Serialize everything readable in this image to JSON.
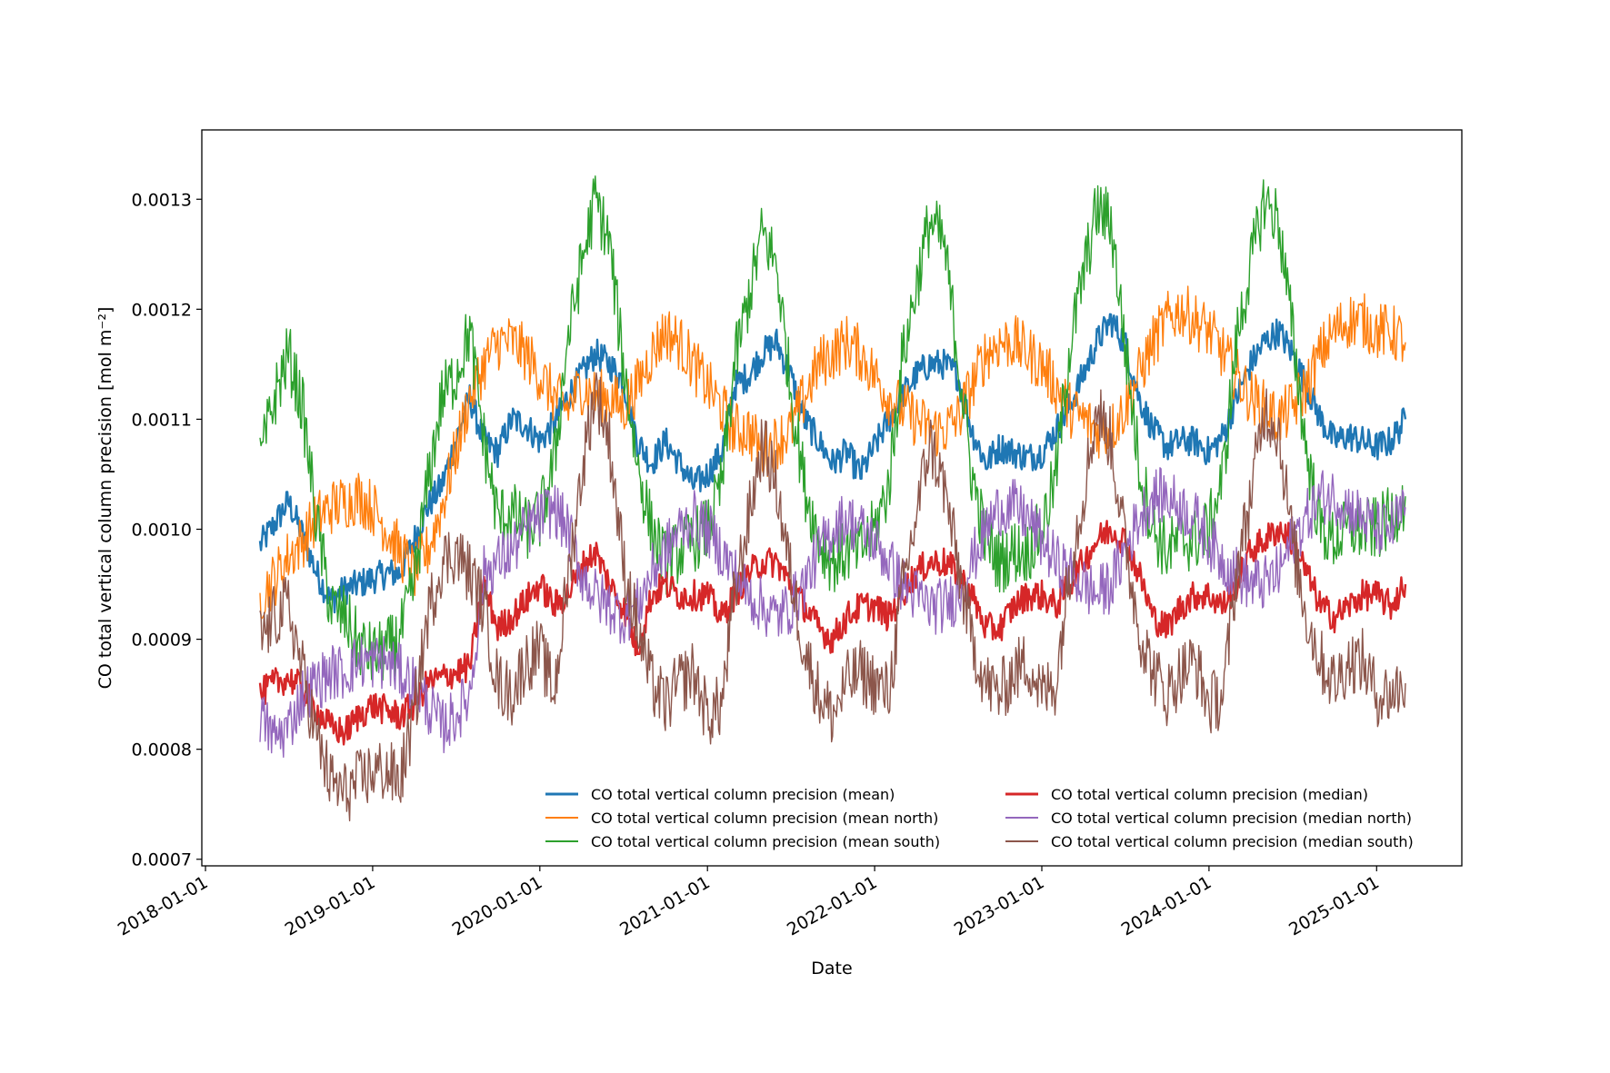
{
  "chart_data": {
    "type": "line",
    "title": "",
    "xlabel": "Date",
    "ylabel": "CO total vertical column precision [mol m⁻²]",
    "x_axis": "date",
    "xlim": [
      "2017-12-24",
      "2025-07-06"
    ],
    "ylim": [
      0.000694,
      0.001363
    ],
    "xticks": [
      "2018-01-01",
      "2019-01-01",
      "2020-01-01",
      "2021-01-01",
      "2022-01-01",
      "2023-01-01",
      "2024-01-01",
      "2025-01-01"
    ],
    "yticks": [
      0.0007,
      0.0008,
      0.0009,
      0.001,
      0.0011,
      0.0012,
      0.0013
    ],
    "ytick_labels": [
      "0.0007",
      "0.0008",
      "0.0009",
      "0.0010",
      "0.0011",
      "0.0012",
      "0.0013"
    ],
    "grid": false,
    "legend_position": "lower-right",
    "legend_columns": 2,
    "x": [
      "2018-04-30",
      "2018-06-01",
      "2018-07-01",
      "2018-08-01",
      "2018-09-01",
      "2018-10-01",
      "2018-11-01",
      "2018-12-01",
      "2019-01-01",
      "2019-02-01",
      "2019-03-01",
      "2019-04-01",
      "2019-05-01",
      "2019-06-01",
      "2019-07-01",
      "2019-08-01",
      "2019-09-01",
      "2019-10-01",
      "2019-11-01",
      "2019-12-01",
      "2020-01-01",
      "2020-02-01",
      "2020-03-01",
      "2020-04-01",
      "2020-05-01",
      "2020-06-01",
      "2020-07-01",
      "2020-08-01",
      "2020-09-01",
      "2020-10-01",
      "2020-11-01",
      "2020-12-01",
      "2021-01-01",
      "2021-02-01",
      "2021-03-01",
      "2021-04-01",
      "2021-05-01",
      "2021-06-01",
      "2021-07-01",
      "2021-08-01",
      "2021-09-01",
      "2021-10-01",
      "2021-11-01",
      "2021-12-01",
      "2022-01-01",
      "2022-02-01",
      "2022-03-01",
      "2022-04-01",
      "2022-05-01",
      "2022-06-01",
      "2022-07-01",
      "2022-08-01",
      "2022-09-01",
      "2022-10-01",
      "2022-11-01",
      "2022-12-01",
      "2023-01-01",
      "2023-02-01",
      "2023-03-01",
      "2023-04-01",
      "2023-05-01",
      "2023-06-01",
      "2023-07-01",
      "2023-08-01",
      "2023-09-01",
      "2023-10-01",
      "2023-11-01",
      "2023-12-01",
      "2024-01-01",
      "2024-02-01",
      "2024-03-01",
      "2024-04-01",
      "2024-05-01",
      "2024-06-01",
      "2024-07-01",
      "2024-08-01",
      "2024-09-01",
      "2024-10-01",
      "2024-11-01",
      "2024-12-01",
      "2025-01-01",
      "2025-02-01",
      "2025-03-05"
    ],
    "series": [
      {
        "name": "CO total vertical column precision (mean)",
        "color": "#1f77b4",
        "width": 2.4,
        "values": [
          0.000985,
          0.001005,
          0.001025,
          0.000995,
          0.00096,
          0.000935,
          0.000945,
          0.00095,
          0.000955,
          0.00096,
          0.00096,
          0.00099,
          0.00102,
          0.00104,
          0.00108,
          0.00112,
          0.00108,
          0.00107,
          0.0011,
          0.001095,
          0.00108,
          0.001095,
          0.00112,
          0.00114,
          0.00116,
          0.00115,
          0.001135,
          0.00108,
          0.00106,
          0.00108,
          0.00106,
          0.00104,
          0.00105,
          0.00107,
          0.00113,
          0.00114,
          0.00116,
          0.00117,
          0.00114,
          0.0011,
          0.00108,
          0.00106,
          0.00107,
          0.00105,
          0.001075,
          0.0011,
          0.00112,
          0.00114,
          0.00115,
          0.00115,
          0.00114,
          0.00109,
          0.00106,
          0.001075,
          0.00107,
          0.001065,
          0.00107,
          0.00109,
          0.00111,
          0.00114,
          0.00117,
          0.00119,
          0.00117,
          0.00112,
          0.00109,
          0.001075,
          0.00108,
          0.00108,
          0.00107,
          0.001085,
          0.00112,
          0.00115,
          0.00117,
          0.00118,
          0.00116,
          0.00113,
          0.0011,
          0.00108,
          0.001085,
          0.00108,
          0.001075,
          0.00108,
          0.0011
        ]
      },
      {
        "name": "CO total vertical column precision (mean north)",
        "color": "#ff7f0e",
        "width": 1.4,
        "values": [
          0.00094,
          0.000955,
          0.000975,
          0.00099,
          0.00101,
          0.00102,
          0.001025,
          0.00103,
          0.00102,
          0.001,
          0.00098,
          0.00096,
          0.00098,
          0.00102,
          0.00107,
          0.00112,
          0.00115,
          0.00117,
          0.00117,
          0.00116,
          0.00114,
          0.00112,
          0.00111,
          0.00113,
          0.00112,
          0.00112,
          0.00111,
          0.00113,
          0.00116,
          0.00118,
          0.00117,
          0.00115,
          0.00113,
          0.00111,
          0.00109,
          0.00109,
          0.00107,
          0.00108,
          0.00109,
          0.00112,
          0.00115,
          0.00116,
          0.00117,
          0.00116,
          0.00114,
          0.00112,
          0.00111,
          0.0011,
          0.00109,
          0.00109,
          0.0011,
          0.00113,
          0.00116,
          0.00117,
          0.00117,
          0.00116,
          0.00115,
          0.00113,
          0.00111,
          0.0011,
          0.00109,
          0.00109,
          0.00111,
          0.00114,
          0.00117,
          0.00119,
          0.0012,
          0.00119,
          0.00118,
          0.00116,
          0.00114,
          0.00112,
          0.00111,
          0.0011,
          0.00111,
          0.00113,
          0.00116,
          0.00118,
          0.00119,
          0.00119,
          0.00118,
          0.00118,
          0.00117
        ]
      },
      {
        "name": "CO total vertical column precision (mean south)",
        "color": "#2ca02c",
        "width": 1.4,
        "values": [
          0.00106,
          0.00112,
          0.00116,
          0.00111,
          0.001005,
          0.00093,
          0.00092,
          0.000895,
          0.000885,
          0.00089,
          0.0009,
          0.00095,
          0.00104,
          0.00112,
          0.00114,
          0.00118,
          0.00108,
          0.00101,
          0.001015,
          0.001,
          0.00101,
          0.00106,
          0.00117,
          0.00124,
          0.0013,
          0.00126,
          0.00115,
          0.00106,
          0.001,
          0.00097,
          0.00098,
          0.00099,
          0.001,
          0.00104,
          0.00115,
          0.00121,
          0.00127,
          0.00124,
          0.00113,
          0.00104,
          0.00099,
          0.00097,
          0.00098,
          0.00098,
          0.001,
          0.00104,
          0.00115,
          0.00122,
          0.00128,
          0.00126,
          0.00116,
          0.00105,
          0.00099,
          0.00097,
          0.00098,
          0.00098,
          0.001,
          0.00105,
          0.00116,
          0.00123,
          0.00129,
          0.00128,
          0.00117,
          0.00106,
          0.001,
          0.00098,
          0.00099,
          0.00099,
          0.001,
          0.00105,
          0.00117,
          0.00124,
          0.0013,
          0.00128,
          0.00118,
          0.00107,
          0.001,
          0.00099,
          0.001,
          0.001,
          0.001,
          0.00101,
          0.00103
        ]
      },
      {
        "name": "CO total vertical column precision (median)",
        "color": "#d62728",
        "width": 2.4,
        "values": [
          0.00085,
          0.00086,
          0.000865,
          0.000855,
          0.000835,
          0.00082,
          0.000815,
          0.00083,
          0.00084,
          0.000835,
          0.00083,
          0.00084,
          0.00086,
          0.000865,
          0.00087,
          0.000875,
          0.00095,
          0.00091,
          0.00092,
          0.000935,
          0.00095,
          0.00093,
          0.00094,
          0.000965,
          0.00098,
          0.00095,
          0.00093,
          0.00089,
          0.00094,
          0.00095,
          0.00094,
          0.00094,
          0.00094,
          0.00092,
          0.00094,
          0.00096,
          0.00097,
          0.00097,
          0.00095,
          0.00093,
          0.00091,
          0.0009,
          0.00092,
          0.00093,
          0.00093,
          0.00092,
          0.00094,
          0.00096,
          0.00097,
          0.00097,
          0.00096,
          0.00094,
          0.00091,
          0.00091,
          0.00093,
          0.00094,
          0.00094,
          0.00093,
          0.00095,
          0.00097,
          0.00099,
          0.001,
          0.00099,
          0.00096,
          0.00092,
          0.00091,
          0.00093,
          0.00094,
          0.00094,
          0.00093,
          0.00095,
          0.00098,
          0.00099,
          0.001,
          0.00099,
          0.00096,
          0.00093,
          0.00092,
          0.00093,
          0.00094,
          0.00094,
          0.00093,
          0.00095
        ]
      },
      {
        "name": "CO total vertical column precision (median north)",
        "color": "#9467bd",
        "width": 1.4,
        "values": [
          0.00083,
          0.00081,
          0.00082,
          0.00085,
          0.00086,
          0.00087,
          0.00087,
          0.00088,
          0.00088,
          0.00088,
          0.00087,
          0.00086,
          0.00084,
          0.00082,
          0.00083,
          0.00085,
          0.00096,
          0.00097,
          0.00098,
          0.001,
          0.00101,
          0.00102,
          0.001,
          0.00096,
          0.00094,
          0.00093,
          0.00092,
          0.00093,
          0.00096,
          0.00098,
          0.001,
          0.00101,
          0.001,
          0.00098,
          0.00096,
          0.00094,
          0.00093,
          0.00092,
          0.00093,
          0.00095,
          0.00098,
          0.001,
          0.00101,
          0.001,
          0.00099,
          0.00097,
          0.00095,
          0.00094,
          0.00093,
          0.00093,
          0.00094,
          0.00097,
          0.001,
          0.00102,
          0.00102,
          0.00101,
          0.00099,
          0.00097,
          0.00096,
          0.00095,
          0.00094,
          0.00095,
          0.00098,
          0.00101,
          0.00103,
          0.00103,
          0.00102,
          0.00101,
          0.00099,
          0.00097,
          0.00096,
          0.00095,
          0.00095,
          0.00096,
          0.00099,
          0.00101,
          0.00103,
          0.00103,
          0.00102,
          0.00101,
          0.001,
          0.001,
          0.00102
        ]
      },
      {
        "name": "CO total vertical column precision (median south)",
        "color": "#8c564b",
        "width": 1.4,
        "values": [
          0.0009,
          0.00092,
          0.00093,
          0.00087,
          0.00081,
          0.00077,
          0.00076,
          0.00077,
          0.00078,
          0.00078,
          0.00077,
          0.00083,
          0.00092,
          0.00097,
          0.00098,
          0.00096,
          0.00093,
          0.00086,
          0.00085,
          0.00088,
          0.00089,
          0.00085,
          0.00095,
          0.00105,
          0.00113,
          0.00108,
          0.00097,
          0.00091,
          0.00086,
          0.00084,
          0.00086,
          0.00087,
          0.00083,
          0.00084,
          0.00094,
          0.00101,
          0.00108,
          0.00104,
          0.00096,
          0.00089,
          0.00085,
          0.00083,
          0.00086,
          0.00087,
          0.00086,
          0.00085,
          0.00094,
          0.00101,
          0.00108,
          0.00104,
          0.00097,
          0.0009,
          0.00086,
          0.00085,
          0.00087,
          0.00088,
          0.00085,
          0.00086,
          0.00096,
          0.00103,
          0.00111,
          0.00108,
          0.00099,
          0.00091,
          0.00087,
          0.00085,
          0.00087,
          0.00088,
          0.00084,
          0.00085,
          0.00096,
          0.00103,
          0.00111,
          0.00109,
          0.00099,
          0.00092,
          0.00088,
          0.00086,
          0.00088,
          0.00088,
          0.00085,
          0.00085,
          0.00086
        ]
      }
    ]
  }
}
